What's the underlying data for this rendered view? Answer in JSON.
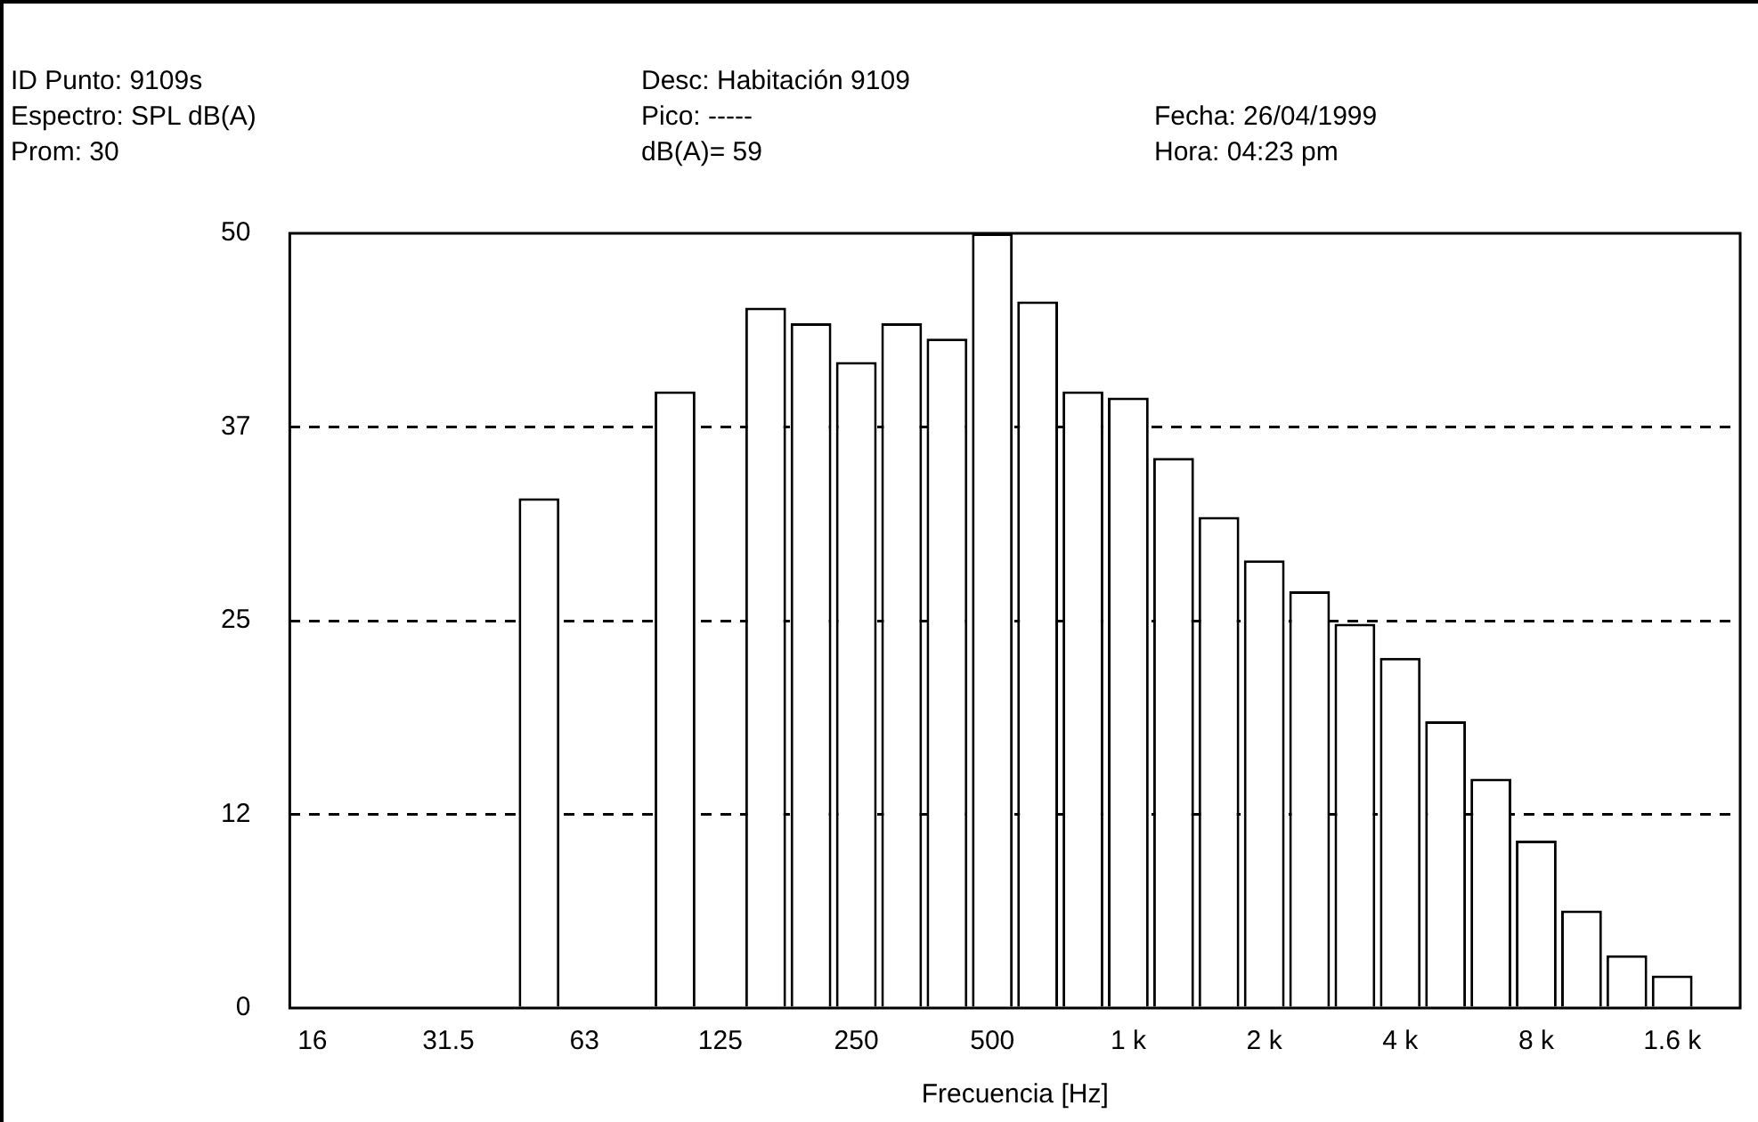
{
  "chart_data": {
    "type": "bar",
    "annotations": [
      "ID Punto: 9109s",
      "Espectro: SPL dB(A)",
      "Prom: 30",
      "Desc: Habitación 9109",
      "Pico: -----",
      "dB(A)= 59",
      "Fecha: 26/04/1999",
      "Hora: 04:23 pm"
    ],
    "xlabel": "Frecuencia [Hz]",
    "categories": [
      "16",
      null,
      null,
      "31.5",
      null,
      null,
      "63",
      null,
      null,
      "125",
      null,
      null,
      "250",
      null,
      null,
      "500",
      null,
      null,
      "1 k",
      null,
      null,
      "2 k",
      null,
      null,
      "4 k",
      null,
      null,
      "8 k",
      null,
      null,
      "1.6 k",
      null
    ],
    "values": [
      0,
      0,
      0,
      0,
      0,
      32.9,
      0,
      0,
      39.8,
      0,
      45.2,
      44.2,
      41.7,
      44.2,
      43.2,
      50,
      45.6,
      39.8,
      39.4,
      35.5,
      31.7,
      28.9,
      26.9,
      24.8,
      22.6,
      18.5,
      14.8,
      10.8,
      6.3,
      3.4,
      2.1,
      0
    ],
    "color": "#ffffff",
    "ylim": [
      0,
      50
    ],
    "yticks": [
      0,
      {
        "value": 12.5,
        "label": "12"
      },
      25,
      {
        "value": 37.5,
        "label": "37"
      },
      50
    ],
    "grid": "y"
  }
}
